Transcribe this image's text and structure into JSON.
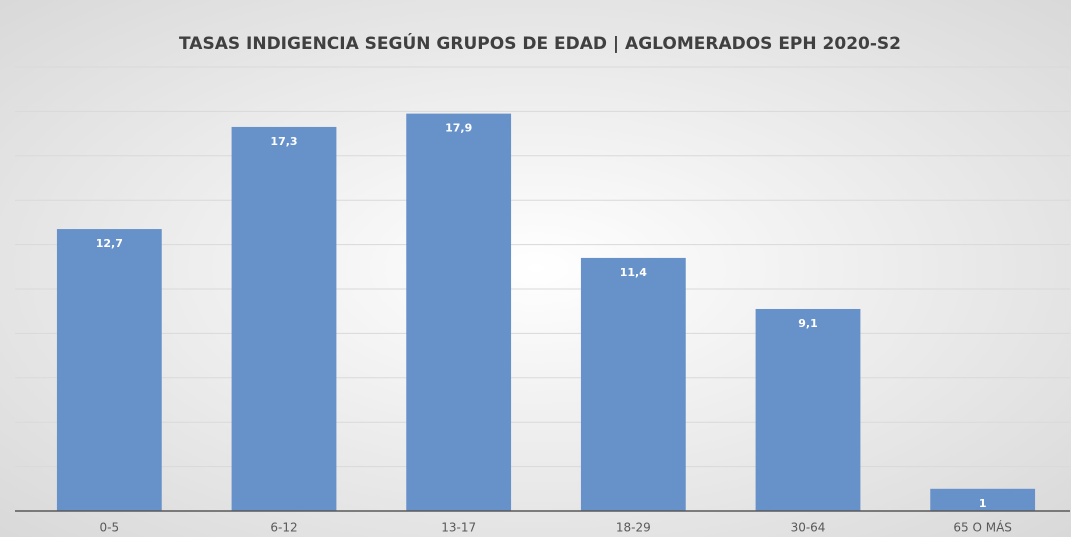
{
  "chart_data": {
    "type": "bar",
    "title": "TASAS INDIGENCIA SEGÚN GRUPOS DE EDAD | AGLOMERADOS EPH 2020-S2",
    "categories": [
      "0-5",
      "6-12",
      "13-17",
      "18-29",
      "30-64",
      "65 O MÁS"
    ],
    "values": [
      12.7,
      17.3,
      17.9,
      11.4,
      9.1,
      1
    ],
    "value_labels": [
      "12,7",
      "17,3",
      "17,9",
      "11,4",
      "9,1",
      "1"
    ],
    "color": "#6691c9",
    "ylim": [
      0,
      20
    ],
    "yticks": [
      0,
      2,
      4,
      6,
      8,
      10,
      12,
      14,
      16,
      18,
      20
    ],
    "grid": true
  }
}
